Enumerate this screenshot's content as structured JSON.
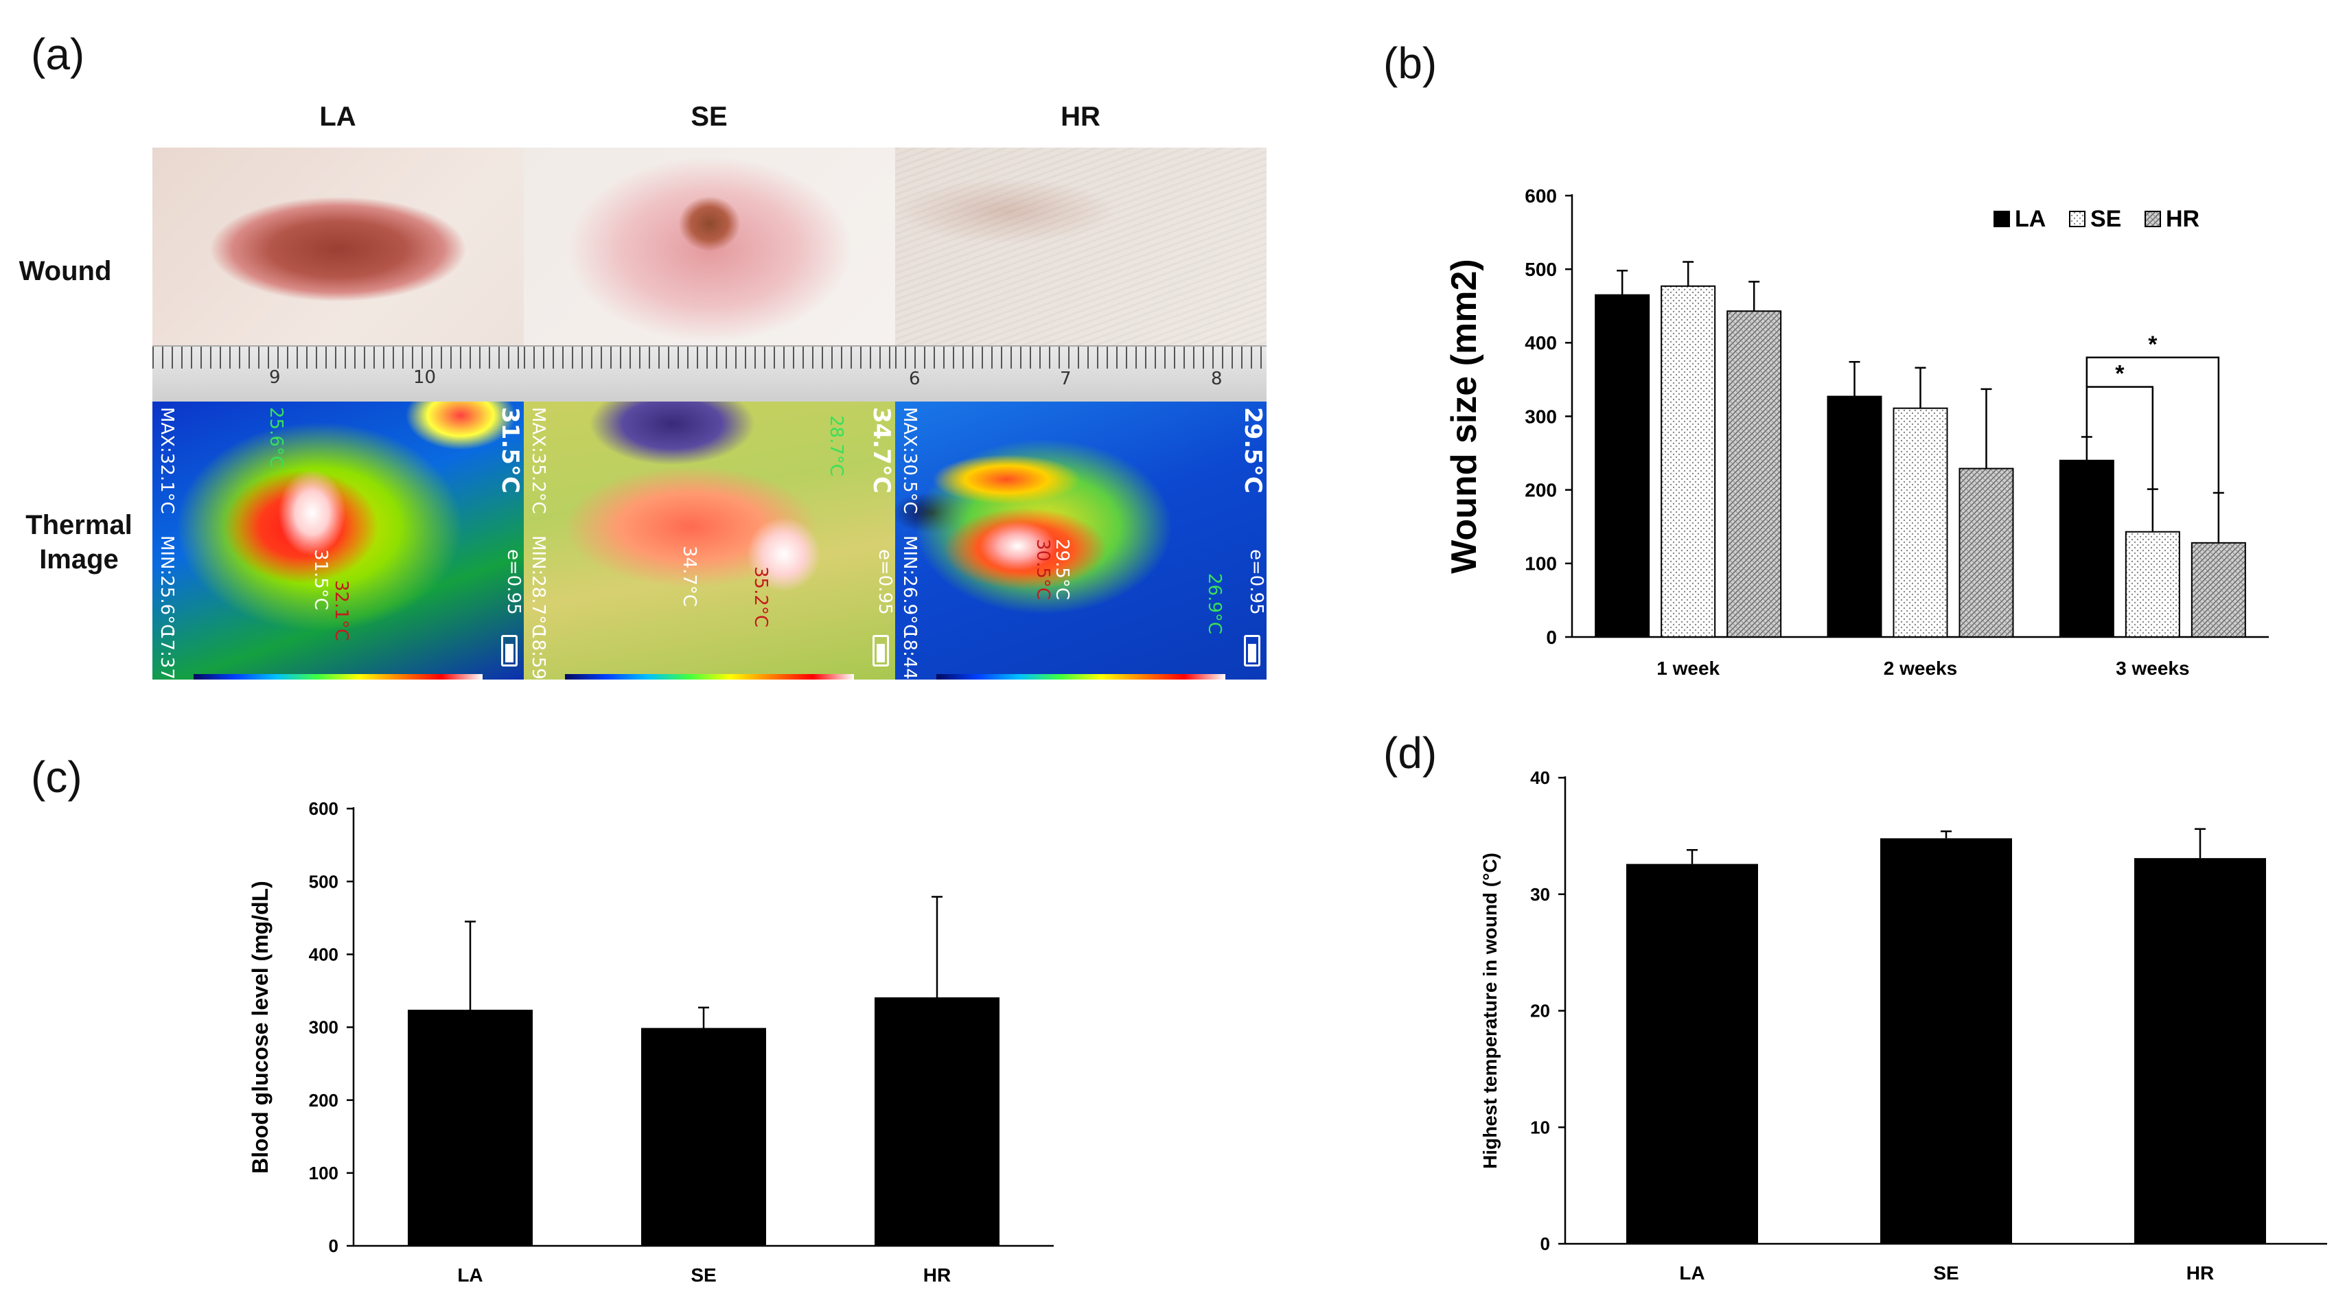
{
  "panel_labels": [
    "(a)",
    "(b)",
    "(c)",
    "(d)"
  ],
  "panel_a": {
    "columns": [
      "LA",
      "SE",
      "HR"
    ],
    "rows": [
      "Wound",
      "Thermal\nImage"
    ],
    "ruler_numbers": {
      "LA": [
        "9",
        "10"
      ],
      "HR": [
        "6",
        "7",
        "8"
      ]
    },
    "thermal": {
      "LA": {
        "corner_temp": "31.5°C",
        "max": "MAX:32.1°C",
        "min": "MIN:25.6°C",
        "emissivity": "e=0.95",
        "time": "17:37",
        "cold_spot": "25.6°C",
        "center_spot": "31.5°C",
        "hot_spot": "32.1°C"
      },
      "SE": {
        "corner_temp": "34.7°C",
        "max": "MAX:35.2°C",
        "min": "MIN:28.7°C",
        "emissivity": "e=0.95",
        "time": "18:59",
        "cold_spot": "28.7°C",
        "center_spot": "34.7°C",
        "hot_spot": "35.2°C"
      },
      "HR": {
        "corner_temp": "29.5°C",
        "max": "MAX:30.5°C",
        "min": "MIN:26.9°C",
        "emissivity": "e=0.95",
        "time": "18:44",
        "cold_spot": "26.9°C",
        "center_spot": "29.5°C",
        "hot_spot": "30.5°C"
      }
    }
  },
  "chart_data": [
    {
      "panel": "(b)",
      "type": "bar",
      "ylabel": "Wound size (mm2)",
      "ylim": [
        0,
        600
      ],
      "yticks": [
        0,
        100,
        200,
        300,
        400,
        500,
        600
      ],
      "categories": [
        "1 week",
        "2 weeks",
        "3 weeks"
      ],
      "legend": "top-right",
      "series": [
        {
          "name": "LA",
          "values": [
            465,
            327,
            240
          ],
          "errors": [
            33,
            47,
            32
          ],
          "color": "#000000",
          "pattern": "solid"
        },
        {
          "name": "SE",
          "values": [
            477,
            311,
            143
          ],
          "errors": [
            33,
            55,
            58
          ],
          "color": "#ffffff",
          "pattern": "dots"
        },
        {
          "name": "HR",
          "values": [
            443,
            229,
            128
          ],
          "errors": [
            40,
            108,
            68
          ],
          "color": "#bbbbbb",
          "pattern": "hatch"
        }
      ],
      "annotations": [
        "*",
        "*"
      ]
    },
    {
      "panel": "(c)",
      "type": "bar",
      "ylabel": "Blood glucose level (mg/dL)",
      "ylim": [
        0,
        600
      ],
      "yticks": [
        0,
        100,
        200,
        300,
        400,
        500,
        600
      ],
      "categories": [
        "LA",
        "SE",
        "HR"
      ],
      "values": [
        324,
        299,
        341
      ],
      "errors": [
        121,
        28,
        138
      ]
    },
    {
      "panel": "(d)",
      "type": "bar",
      "ylabel": "Highest temperature in wound (°C)",
      "ylim": [
        0,
        40
      ],
      "yticks": [
        0,
        10,
        20,
        30,
        40
      ],
      "categories": [
        "LA",
        "SE",
        "HR"
      ],
      "values": [
        32.6,
        34.8,
        33.1
      ],
      "errors": [
        1.2,
        0.6,
        2.5
      ]
    }
  ]
}
